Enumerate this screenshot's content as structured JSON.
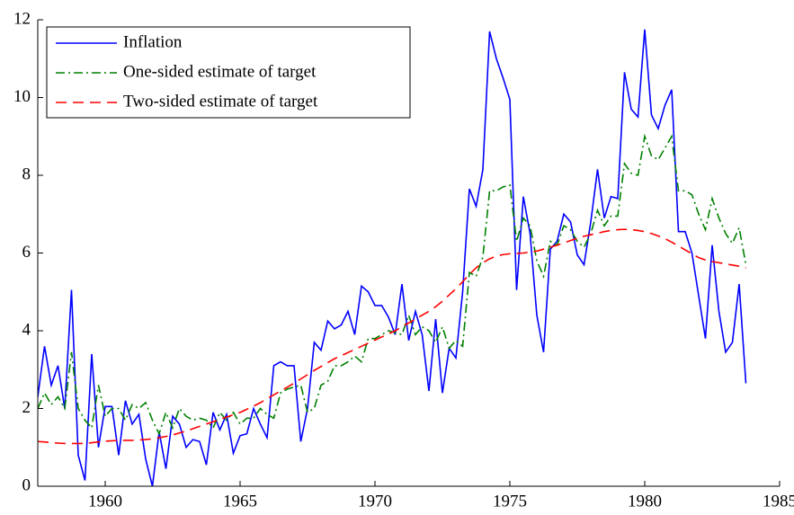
{
  "chart_data": {
    "type": "line",
    "x": [
      1957.5,
      1957.75,
      1958,
      1958.25,
      1958.5,
      1958.75,
      1959,
      1959.25,
      1959.5,
      1959.75,
      1960,
      1960.25,
      1960.5,
      1960.75,
      1961,
      1961.25,
      1961.5,
      1961.75,
      1962,
      1962.25,
      1962.5,
      1962.75,
      1963,
      1963.25,
      1963.5,
      1963.75,
      1964,
      1964.25,
      1964.5,
      1964.75,
      1965,
      1965.25,
      1965.5,
      1965.75,
      1966,
      1966.25,
      1966.5,
      1966.75,
      1967,
      1967.25,
      1967.5,
      1967.75,
      1968,
      1968.25,
      1968.5,
      1968.75,
      1969,
      1969.25,
      1969.5,
      1969.75,
      1970,
      1970.25,
      1970.5,
      1970.75,
      1971,
      1971.25,
      1971.5,
      1971.75,
      1972,
      1972.25,
      1972.5,
      1972.75,
      1973,
      1973.25,
      1973.5,
      1973.75,
      1974,
      1974.25,
      1974.5,
      1974.75,
      1975,
      1975.25,
      1975.5,
      1975.75,
      1976,
      1976.25,
      1976.5,
      1976.75,
      1977,
      1977.25,
      1977.5,
      1977.75,
      1978,
      1978.25,
      1978.5,
      1978.75,
      1979,
      1979.25,
      1979.5,
      1979.75,
      1980,
      1980.25,
      1980.5,
      1980.75,
      1981,
      1981.25,
      1981.5,
      1981.75,
      1982,
      1982.25,
      1982.5,
      1982.75,
      1983,
      1983.25,
      1983.5,
      1983.75
    ],
    "series": [
      {
        "name": "Inflation",
        "color": "#0000ff",
        "linestyle": "solid",
        "values": [
          2.3,
          3.6,
          2.6,
          3.1,
          2.0,
          5.05,
          0.8,
          0.15,
          3.4,
          1.0,
          2.05,
          2.05,
          0.8,
          2.2,
          1.6,
          1.85,
          0.7,
          0.0,
          1.4,
          0.45,
          1.8,
          1.6,
          1.0,
          1.2,
          1.15,
          0.55,
          1.9,
          1.45,
          1.85,
          0.85,
          1.3,
          1.35,
          2.0,
          1.6,
          1.25,
          3.1,
          3.2,
          3.1,
          3.1,
          1.15,
          2.0,
          3.7,
          3.5,
          4.25,
          4.05,
          4.15,
          4.5,
          3.9,
          5.15,
          5.0,
          4.65,
          4.65,
          4.35,
          3.9,
          5.2,
          3.75,
          4.5,
          3.9,
          2.45,
          4.3,
          2.4,
          3.55,
          3.3,
          5.0,
          7.65,
          7.2,
          8.15,
          11.7,
          11.0,
          10.5,
          9.95,
          5.05,
          7.45,
          6.5,
          4.4,
          3.45,
          6.1,
          6.3,
          7.0,
          6.8,
          5.95,
          5.7,
          6.8,
          8.15,
          6.9,
          7.45,
          7.4,
          10.65,
          9.7,
          9.5,
          11.75,
          9.55,
          9.2,
          9.8,
          10.2,
          6.55,
          6.55,
          6.0,
          4.9,
          3.8,
          6.2,
          4.5,
          3.45,
          3.7,
          5.2,
          2.65
        ]
      },
      {
        "name": "One-sided estimate of target",
        "color": "#008000",
        "linestyle": "dashdot",
        "values": [
          2.0,
          2.4,
          2.1,
          2.3,
          2.0,
          3.45,
          2.0,
          1.7,
          1.5,
          2.6,
          1.8,
          2.0,
          2.0,
          1.7,
          2.1,
          2.0,
          2.15,
          1.7,
          1.35,
          1.9,
          1.5,
          2.0,
          1.8,
          1.7,
          1.75,
          1.7,
          1.5,
          1.9,
          1.7,
          1.9,
          1.6,
          1.75,
          1.75,
          2.0,
          1.85,
          1.75,
          2.4,
          2.5,
          2.55,
          2.6,
          1.9,
          2.0,
          2.6,
          2.7,
          3.1,
          3.1,
          3.2,
          3.35,
          3.2,
          3.8,
          3.8,
          3.9,
          4.0,
          3.95,
          3.9,
          4.4,
          3.9,
          4.1,
          4.0,
          3.7,
          4.1,
          3.55,
          3.75,
          3.6,
          5.5,
          5.4,
          5.9,
          7.6,
          7.6,
          7.7,
          7.75,
          6.3,
          6.9,
          6.7,
          5.8,
          5.4,
          6.3,
          6.2,
          6.7,
          6.6,
          6.3,
          6.15,
          6.5,
          7.1,
          6.7,
          6.95,
          6.95,
          8.3,
          8.05,
          8.0,
          9.0,
          8.5,
          8.4,
          8.7,
          9.0,
          7.6,
          7.6,
          7.5,
          7.0,
          6.6,
          7.4,
          6.9,
          6.5,
          6.25,
          6.65,
          5.7
        ]
      },
      {
        "name": "Two-sided estimate of target",
        "color": "#ff0000",
        "linestyle": "dashed",
        "values": [
          1.15,
          1.14,
          1.12,
          1.11,
          1.1,
          1.1,
          1.1,
          1.1,
          1.12,
          1.14,
          1.16,
          1.17,
          1.18,
          1.18,
          1.18,
          1.19,
          1.2,
          1.22,
          1.25,
          1.28,
          1.32,
          1.37,
          1.42,
          1.48,
          1.54,
          1.6,
          1.66,
          1.72,
          1.78,
          1.84,
          1.9,
          1.98,
          2.06,
          2.15,
          2.25,
          2.35,
          2.45,
          2.55,
          2.65,
          2.76,
          2.87,
          2.98,
          3.08,
          3.18,
          3.28,
          3.36,
          3.44,
          3.52,
          3.6,
          3.68,
          3.76,
          3.84,
          3.92,
          4.0,
          4.1,
          4.2,
          4.3,
          4.4,
          4.5,
          4.62,
          4.76,
          4.92,
          5.08,
          5.26,
          5.45,
          5.62,
          5.75,
          5.85,
          5.92,
          5.96,
          5.98,
          5.99,
          6.0,
          6.02,
          6.05,
          6.1,
          6.15,
          6.2,
          6.26,
          6.32,
          6.38,
          6.43,
          6.47,
          6.51,
          6.55,
          6.58,
          6.6,
          6.61,
          6.6,
          6.58,
          6.55,
          6.5,
          6.44,
          6.37,
          6.28,
          6.18,
          6.08,
          5.98,
          5.88,
          5.82,
          5.78,
          5.75,
          5.72,
          5.69,
          5.66,
          5.62
        ]
      }
    ],
    "xlim": [
      1957.5,
      1985
    ],
    "xticks": [
      1960,
      1965,
      1970,
      1975,
      1980,
      1985
    ],
    "ylim": [
      0,
      12
    ],
    "yticks": [
      0,
      2,
      4,
      6,
      8,
      10,
      12
    ],
    "grid": false,
    "legend": "upper left"
  }
}
